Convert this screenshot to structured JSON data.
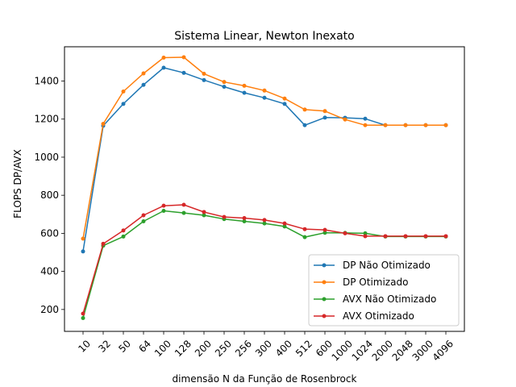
{
  "chart_data": {
    "type": "line",
    "title": "Sistema Linear, Newton Inexato",
    "xlabel": "dimensão N da Função de Rosenbrock",
    "ylabel": "FLOPS DP/AVX",
    "categories": [
      "10",
      "32",
      "50",
      "64",
      "100",
      "128",
      "200",
      "250",
      "256",
      "300",
      "400",
      "512",
      "600",
      "1000",
      "1024",
      "2000",
      "2048",
      "3000",
      "4096"
    ],
    "yticks": [
      200,
      400,
      600,
      800,
      1000,
      1200,
      1400
    ],
    "ylim": [
      85,
      1580
    ],
    "grid": false,
    "legend_position": "lower-right",
    "series": [
      {
        "name": "DP Não Otimizado",
        "color": "#1f77b4",
        "values": [
          505,
          1165,
          1280,
          1380,
          1470,
          1443,
          1405,
          1370,
          1338,
          1312,
          1280,
          1168,
          1208,
          1207,
          1202,
          1168,
          1168,
          1168,
          1168
        ]
      },
      {
        "name": "DP Otimizado",
        "color": "#ff7f0e",
        "values": [
          572,
          1175,
          1345,
          1440,
          1523,
          1525,
          1438,
          1395,
          1375,
          1350,
          1308,
          1250,
          1242,
          1198,
          1168,
          1168,
          1168,
          1168,
          1168
        ]
      },
      {
        "name": "AVX Não Otimizado",
        "color": "#2ca02c",
        "values": [
          155,
          535,
          583,
          663,
          718,
          707,
          695,
          675,
          663,
          652,
          636,
          580,
          603,
          602,
          600,
          583,
          583,
          583,
          583
        ]
      },
      {
        "name": "AVX Otimizado",
        "color": "#d62728",
        "values": [
          178,
          545,
          615,
          695,
          745,
          750,
          712,
          686,
          680,
          670,
          652,
          622,
          618,
          600,
          585,
          585,
          585,
          585,
          585
        ]
      }
    ]
  }
}
